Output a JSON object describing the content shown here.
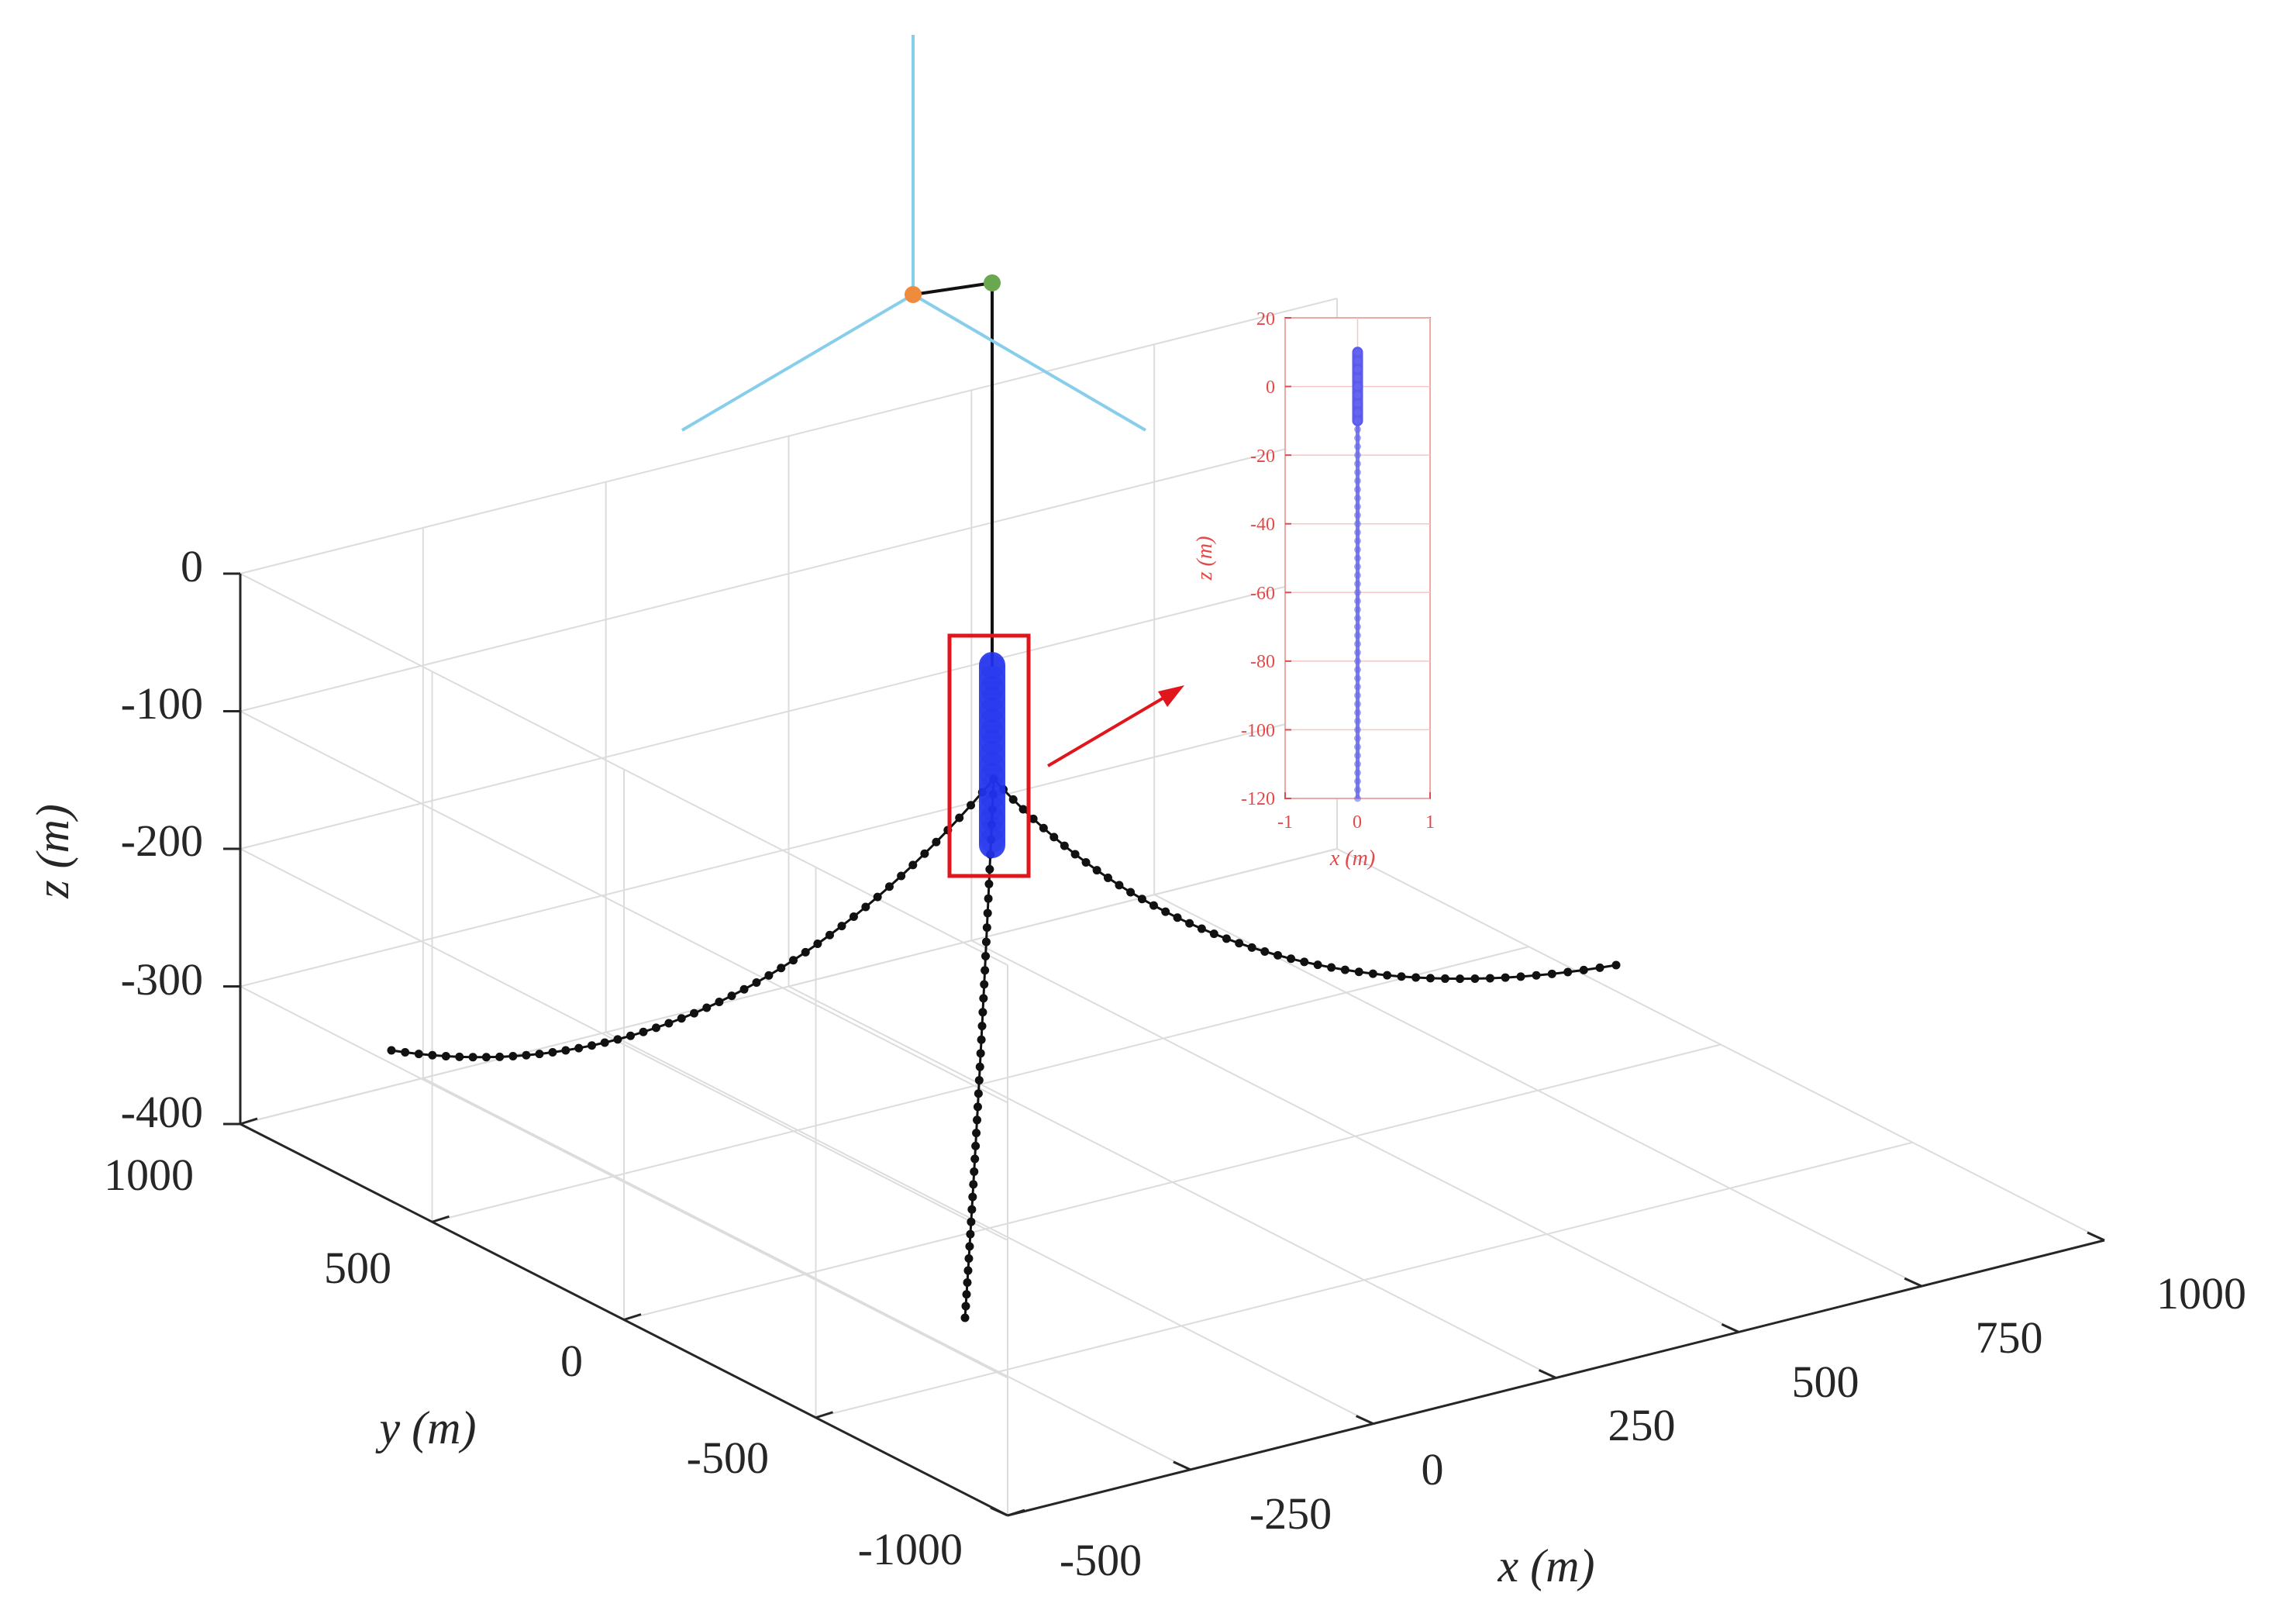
{
  "chart_data": [
    {
      "type": "line",
      "projection": "3d",
      "title": "",
      "xlabel": "x (m)",
      "ylabel": "y (m)",
      "zlabel": "z (m)",
      "xlim": [
        -500,
        1000
      ],
      "ylim": [
        -1000,
        1000
      ],
      "zlim": [
        -400,
        0
      ],
      "xticks": [
        "-500",
        "-250",
        "0",
        "250",
        "500",
        "750",
        "1000"
      ],
      "yticks": [
        "-1000",
        "-500",
        "0",
        "500",
        "1000"
      ],
      "zticks": [
        "0",
        "-100",
        "-200",
        "-300",
        "-400"
      ],
      "grid": true,
      "colors": {
        "mooring_lines": "#111111",
        "tower": "#111111",
        "blades": "#87ceeb",
        "hub": "#f08a3c",
        "nacelle": "#6aa84f",
        "floater": "#2233ee",
        "highlight_box": "#e0161c"
      },
      "series": [
        {
          "kind": "mooring-line",
          "marker": "dot",
          "fairlead": {
            "x": 0,
            "y": 0,
            "z": -150
          },
          "anchor": {
            "x": -560,
            "y": 560,
            "z": -390
          },
          "sag_minimum": {
            "x": -530,
            "y": 530,
            "z": -395
          }
        },
        {
          "kind": "mooring-line",
          "marker": "dot",
          "fairlead": {
            "x": 0,
            "y": 0,
            "z": -150
          },
          "anchor": {
            "x": 800,
            "y": 0,
            "z": -290
          },
          "sag_minimum": {
            "x": 760,
            "y": 0,
            "z": -305
          }
        },
        {
          "kind": "mooring-line",
          "marker": "dot",
          "fairlead": {
            "x": 0,
            "y": 0,
            "z": -150
          },
          "anchor": {
            "x": -200,
            "y": -700,
            "z": -390
          },
          "sag_minimum": null
        }
      ]
    },
    {
      "type": "line",
      "title": "",
      "xlabel": "x (m)",
      "ylabel": "z (m)",
      "xlim": [
        -1,
        1
      ],
      "ylim": [
        -120,
        20
      ],
      "xticks": [
        "-1",
        "0",
        "1"
      ],
      "yticks": [
        "20",
        "0",
        "-20",
        "-40",
        "-60",
        "-80",
        "-100",
        "-120"
      ],
      "grid": true,
      "series": [
        {
          "kind": "floater-spar",
          "marker": "dot",
          "x": [
            0,
            0,
            0,
            0,
            0
          ],
          "z": [
            10,
            -10,
            -50,
            -90,
            -120
          ],
          "thick_segment_z": [
            10,
            -10
          ]
        }
      ]
    }
  ]
}
